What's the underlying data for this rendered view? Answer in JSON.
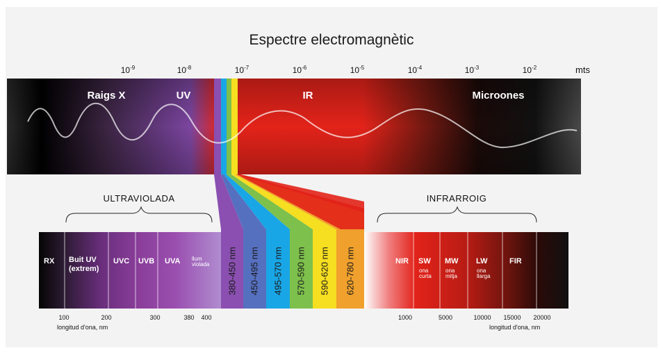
{
  "title": "Espectre electromagnètic",
  "scale": {
    "exponents": [
      {
        "base": "10",
        "exp": "-9"
      },
      {
        "base": "10",
        "exp": "-8"
      },
      {
        "base": "10",
        "exp": "-7"
      },
      {
        "base": "10",
        "exp": "-6"
      },
      {
        "base": "10",
        "exp": "-5"
      },
      {
        "base": "10",
        "exp": "-4"
      },
      {
        "base": "10",
        "exp": "-3"
      },
      {
        "base": "10",
        "exp": "-2"
      }
    ],
    "units": "mts"
  },
  "top_regions": [
    "Raigs X",
    "UV",
    "IR",
    "Microones"
  ],
  "sections": {
    "left": "ULTRAVIOLADA",
    "right": "INFRARROIG"
  },
  "uv_bands": {
    "rx": "RX",
    "buit_uv": "Buit UV\n(extrem)",
    "uvc": "UVC",
    "uvb": "UVB",
    "uva": "UVA",
    "llum_violada": "llum\nviolada"
  },
  "visible_bands": [
    {
      "label": "380-450 nm",
      "color": "#8a4fb0"
    },
    {
      "label": "450-495 nm",
      "color": "#5670c0"
    },
    {
      "label": "495-570 nm",
      "color": "#19a6e6"
    },
    {
      "label": "570-590 nm",
      "color": "#7dc04c"
    },
    {
      "label": "590-620 nm",
      "color": "#f6de21"
    },
    {
      "label": "620-780 nm",
      "color": "#f0a02c"
    }
  ],
  "ir_bands": {
    "nir": "NIR",
    "sw": "SW",
    "sw_sub": "ona\ncurta",
    "mw": "MW",
    "mw_sub": "ona\nmitja",
    "lw": "LW",
    "lw_sub": "ona\nllarga",
    "fir": "FIR"
  },
  "uv_ticks": [
    "100",
    "200",
    "300",
    "380",
    "400"
  ],
  "ir_ticks": [
    "1000",
    "5000",
    "10000",
    "15000",
    "20000"
  ],
  "axis_label": "longitud d'ona, nm",
  "colors": {
    "ir_red": "#e2231a",
    "violet": "#7a3f98",
    "dark": "#141414"
  }
}
